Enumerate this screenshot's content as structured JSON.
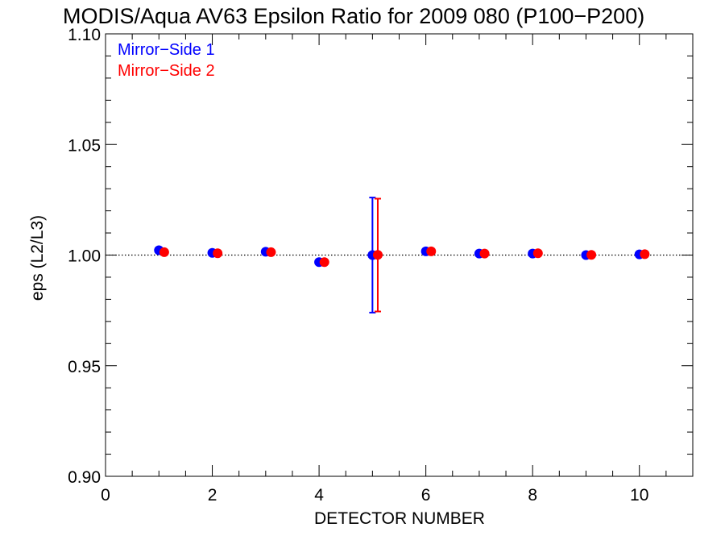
{
  "chart_data": {
    "type": "scatter",
    "title": "MODIS/Aqua AV63 Epsilon Ratio for 2009 080 (P100−P200)",
    "xlabel": "DETECTOR NUMBER",
    "ylabel": "eps (L2/L3)",
    "xlim": [
      0,
      11
    ],
    "ylim": [
      0.9,
      1.1
    ],
    "x_ticks": [
      0,
      2,
      4,
      6,
      8,
      10
    ],
    "x_tick_labels": [
      "0",
      "2",
      "4",
      "6",
      "8",
      "10"
    ],
    "y_ticks": [
      0.9,
      0.95,
      1.0,
      1.05,
      1.1
    ],
    "y_tick_labels": [
      "0.90",
      "0.95",
      "1.00",
      "1.05",
      "1.10"
    ],
    "reference_line": 1.0,
    "grid": false,
    "legend_position": "top-left",
    "series": [
      {
        "name": "Mirror−Side 1",
        "color": "#0000ff",
        "x": [
          1,
          2,
          3,
          4,
          5,
          6,
          7,
          8,
          9,
          10
        ],
        "y": [
          1.0022,
          1.001,
          1.0015,
          0.9968,
          1.0,
          1.0017,
          1.0007,
          1.0007,
          1.0,
          1.0003
        ],
        "error_bars": [
          {
            "x": 5,
            "low": 0.974,
            "high": 1.026
          }
        ]
      },
      {
        "name": "Mirror−Side 2",
        "color": "#ff0000",
        "x": [
          1.1,
          2.1,
          3.1,
          4.1,
          5.1,
          6.1,
          7.1,
          8.1,
          9.1,
          10.1
        ],
        "y": [
          1.0013,
          1.0008,
          1.0013,
          0.9968,
          1.0001,
          1.0017,
          1.0007,
          1.0008,
          1.0001,
          1.0004
        ],
        "error_bars": [
          {
            "x": 5.1,
            "low": 0.9745,
            "high": 1.0255
          }
        ]
      }
    ]
  }
}
